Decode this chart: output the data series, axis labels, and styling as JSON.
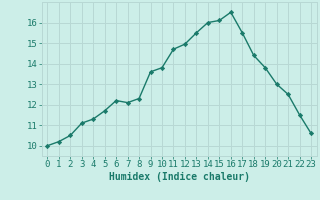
{
  "x": [
    0,
    1,
    2,
    3,
    4,
    5,
    6,
    7,
    8,
    9,
    10,
    11,
    12,
    13,
    14,
    15,
    16,
    17,
    18,
    19,
    20,
    21,
    22,
    23
  ],
  "y": [
    10.0,
    10.2,
    10.5,
    11.1,
    11.3,
    11.7,
    12.2,
    12.1,
    12.3,
    13.6,
    13.8,
    14.7,
    14.95,
    15.5,
    16.0,
    16.1,
    16.5,
    15.5,
    14.4,
    13.8,
    13.0,
    12.5,
    11.5,
    10.6
  ],
  "line_color": "#1a7a6a",
  "marker": "D",
  "marker_size": 2.2,
  "linewidth": 1.0,
  "bg_color": "#cceee8",
  "grid_color": "#b8d8d4",
  "xlabel": "Humidex (Indice chaleur)",
  "xlim": [
    -0.5,
    23.5
  ],
  "ylim": [
    9.5,
    17.0
  ],
  "yticks": [
    10,
    11,
    12,
    13,
    14,
    15,
    16
  ],
  "xtick_labels": [
    "0",
    "1",
    "2",
    "3",
    "4",
    "5",
    "6",
    "7",
    "8",
    "9",
    "10",
    "11",
    "12",
    "13",
    "14",
    "15",
    "16",
    "17",
    "18",
    "19",
    "20",
    "21",
    "22",
    "23"
  ],
  "xlabel_fontsize": 7,
  "tick_fontsize": 6.5,
  "tick_color": "#1a7a6a",
  "label_color": "#1a7a6a"
}
